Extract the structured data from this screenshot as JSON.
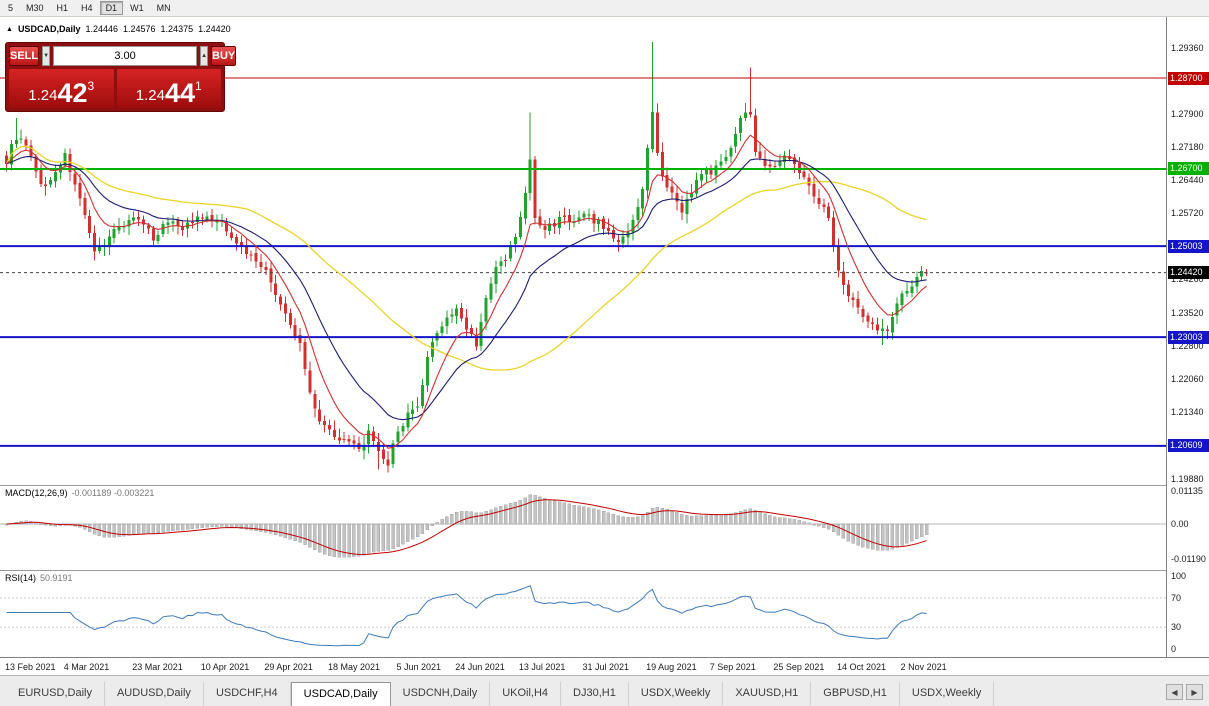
{
  "toolbar": {
    "timeframes": [
      "5",
      "M30",
      "H1",
      "H4",
      "D1",
      "W1",
      "MN"
    ],
    "active": "D1"
  },
  "chart_header": {
    "direction_icon": "▲",
    "symbol": "USDCAD,Daily",
    "open": "1.24446",
    "high": "1.24576",
    "low": "1.24375",
    "close": "1.24420"
  },
  "trade_panel": {
    "sell_label": "SELL",
    "buy_label": "BUY",
    "volume": "3.00",
    "spinner_up": "▲",
    "spinner_down": "▼",
    "sell_price": {
      "big": "1.24",
      "digits": "42",
      "sup": "3"
    },
    "buy_price": {
      "big": "1.24",
      "digits": "44",
      "sup": "1"
    }
  },
  "colors": {
    "up_candle": "#1fa32e",
    "down_candle": "#d22f2f",
    "ma_fast": "#d03030",
    "ma_mid": "#1b1b70",
    "ma_slow": "#e9d428",
    "macd_hist": "#c2c2c2",
    "macd_hist_border": "#9e9e9e",
    "macd_signal": "#c00000",
    "rsi_line": "#3e7ab8",
    "level_red": "#c00000",
    "level_green": "#00b200",
    "level_blue": "#1414c8",
    "current_badge": "#000000"
  },
  "price_scale": {
    "labels": [
      {
        "text": "1.29360",
        "price": 1.2936
      },
      {
        "text": "1.27900",
        "price": 1.279
      },
      {
        "text": "1.27180",
        "price": 1.2718
      },
      {
        "text": "1.26440",
        "price": 1.2644
      },
      {
        "text": "1.25720",
        "price": 1.2572
      },
      {
        "text": "1.24260",
        "price": 1.2426
      },
      {
        "text": "1.23520",
        "price": 1.2352
      },
      {
        "text": "1.22800",
        "price": 1.228
      },
      {
        "text": "1.22060",
        "price": 1.2206
      },
      {
        "text": "1.21340",
        "price": 1.2134
      },
      {
        "text": "1.19880",
        "price": 1.1988
      }
    ],
    "badges": [
      {
        "text": "1.28700",
        "price": 1.287,
        "color": "#c00000",
        "kind": "resistance-red"
      },
      {
        "text": "1.26700",
        "price": 1.267,
        "color": "#00b200",
        "kind": "level-green"
      },
      {
        "text": "1.25003",
        "price": 1.25003,
        "color": "#1414c8",
        "kind": "level-blue"
      },
      {
        "text": "1.24420",
        "price": 1.2442,
        "color": "#000000",
        "kind": "current-price"
      },
      {
        "text": "1.23003",
        "price": 1.23003,
        "color": "#1414c8",
        "kind": "level-blue"
      },
      {
        "text": "1.20609",
        "price": 1.20609,
        "color": "#1414c8",
        "kind": "level-blue"
      }
    ]
  },
  "indicators": {
    "macd": {
      "label": "MACD(12,26,9)",
      "values": "-0.001189 -0.003221",
      "fast": 12,
      "slow": 26,
      "signal": 9,
      "scale_labels": [
        {
          "text": "0.01135",
          "v": 0.01135
        },
        {
          "text": "0.00",
          "v": 0
        },
        {
          "text": "-0.01190",
          "v": -0.0119
        }
      ]
    },
    "rsi": {
      "label": "RSI(14)",
      "value": "50.9191",
      "period": 14,
      "scale_labels": [
        {
          "text": "100",
          "v": 100
        },
        {
          "text": "70",
          "v": 70
        },
        {
          "text": "30",
          "v": 30
        },
        {
          "text": "0",
          "v": 0
        }
      ],
      "level_lines": [
        70,
        30
      ]
    }
  },
  "chart_data": {
    "type": "candlestick",
    "symbol": "USDCAD",
    "timeframe": "Daily",
    "ohlc_last": {
      "open": 1.24446,
      "high": 1.24576,
      "low": 1.24375,
      "close": 1.2442
    },
    "price_range": [
      1.1975,
      1.3002
    ],
    "candle_count": 189,
    "current_price": 1.2442,
    "levels": [
      {
        "price": 1.287,
        "color": "#c00000",
        "width": 1
      },
      {
        "price": 1.267,
        "color": "#00b200",
        "width": 2
      },
      {
        "price": 1.25003,
        "color": "#1414c8",
        "width": 2
      },
      {
        "price": 1.23003,
        "color": "#1414c8",
        "width": 2
      },
      {
        "price": 1.20609,
        "color": "#1414c8",
        "width": 2
      }
    ],
    "moving_averages": [
      {
        "type": "ema",
        "period": 8,
        "color_key": "ma_fast"
      },
      {
        "type": "ema",
        "period": 20,
        "color_key": "ma_mid"
      },
      {
        "type": "sma",
        "period": 50,
        "color_key": "ma_slow"
      }
    ],
    "close_anchors": [
      [
        0,
        1.269
      ],
      [
        2,
        1.2742
      ],
      [
        4,
        1.2718
      ],
      [
        6,
        1.2662
      ],
      [
        8,
        1.2628
      ],
      [
        10,
        1.2668
      ],
      [
        12,
        1.2698
      ],
      [
        14,
        1.264
      ],
      [
        16,
        1.256
      ],
      [
        18,
        1.2482
      ],
      [
        20,
        1.2512
      ],
      [
        22,
        1.2536
      ],
      [
        24,
        1.255
      ],
      [
        26,
        1.2564
      ],
      [
        28,
        1.2542
      ],
      [
        30,
        1.252
      ],
      [
        32,
        1.2544
      ],
      [
        34,
        1.256
      ],
      [
        36,
        1.254
      ],
      [
        38,
        1.2554
      ],
      [
        40,
        1.2562
      ],
      [
        42,
        1.2556
      ],
      [
        44,
        1.2548
      ],
      [
        46,
        1.2526
      ],
      [
        48,
        1.2496
      ],
      [
        50,
        1.248
      ],
      [
        52,
        1.2462
      ],
      [
        54,
        1.242
      ],
      [
        56,
        1.2372
      ],
      [
        58,
        1.2322
      ],
      [
        60,
        1.2284
      ],
      [
        62,
        1.218
      ],
      [
        64,
        1.2118
      ],
      [
        66,
        1.2096
      ],
      [
        68,
        1.208
      ],
      [
        70,
        1.2066
      ],
      [
        72,
        1.2052
      ],
      [
        74,
        1.2088
      ],
      [
        76,
        1.2042
      ],
      [
        78,
        1.2022
      ],
      [
        80,
        1.2096
      ],
      [
        82,
        1.2128
      ],
      [
        84,
        1.2142
      ],
      [
        86,
        1.225
      ],
      [
        88,
        1.2316
      ],
      [
        90,
        1.2342
      ],
      [
        92,
        1.236
      ],
      [
        94,
        1.2322
      ],
      [
        96,
        1.2286
      ],
      [
        98,
        1.238
      ],
      [
        100,
        1.2452
      ],
      [
        102,
        1.2472
      ],
      [
        104,
        1.2522
      ],
      [
        106,
        1.2612
      ],
      [
        107,
        1.2688
      ],
      [
        108,
        1.2562
      ],
      [
        110,
        1.2536
      ],
      [
        112,
        1.2552
      ],
      [
        114,
        1.2568
      ],
      [
        116,
        1.2548
      ],
      [
        118,
        1.2568
      ],
      [
        120,
        1.2558
      ],
      [
        122,
        1.2542
      ],
      [
        124,
        1.2518
      ],
      [
        126,
        1.2514
      ],
      [
        128,
        1.2562
      ],
      [
        130,
        1.2624
      ],
      [
        132,
        1.2792
      ],
      [
        133,
        1.2702
      ],
      [
        134,
        1.2646
      ],
      [
        136,
        1.2612
      ],
      [
        138,
        1.2582
      ],
      [
        140,
        1.2622
      ],
      [
        142,
        1.2656
      ],
      [
        144,
        1.2666
      ],
      [
        146,
        1.268
      ],
      [
        148,
        1.2722
      ],
      [
        150,
        1.2782
      ],
      [
        152,
        1.2796
      ],
      [
        153,
        1.2712
      ],
      [
        154,
        1.2702
      ],
      [
        156,
        1.2668
      ],
      [
        158,
        1.269
      ],
      [
        160,
        1.27
      ],
      [
        162,
        1.2662
      ],
      [
        164,
        1.2634
      ],
      [
        166,
        1.2602
      ],
      [
        168,
        1.2558
      ],
      [
        170,
        1.2452
      ],
      [
        172,
        1.2392
      ],
      [
        174,
        1.2362
      ],
      [
        176,
        1.2332
      ],
      [
        178,
        1.2316
      ],
      [
        180,
        1.2322
      ],
      [
        182,
        1.2382
      ],
      [
        184,
        1.2402
      ],
      [
        186,
        1.2436
      ],
      [
        188,
        1.2442
      ]
    ],
    "spikes": [
      {
        "i": 2,
        "high": 1.2782
      },
      {
        "i": 76,
        "low": 1.2009
      },
      {
        "i": 107,
        "high": 1.2794
      },
      {
        "i": 132,
        "high": 1.2949
      },
      {
        "i": 152,
        "high": 1.2893
      },
      {
        "i": 179,
        "low": 1.2283
      }
    ],
    "x_labels": [
      {
        "text": "13 Feb 2021",
        "i": 0
      },
      {
        "text": "4 Mar 2021",
        "i": 12
      },
      {
        "text": "23 Mar 2021",
        "i": 26
      },
      {
        "text": "10 Apr 2021",
        "i": 40
      },
      {
        "text": "29 Apr 2021",
        "i": 53
      },
      {
        "text": "18 May 2021",
        "i": 66
      },
      {
        "text": "5 Jun 2021",
        "i": 80
      },
      {
        "text": "24 Jun 2021",
        "i": 92
      },
      {
        "text": "13 Jul 2021",
        "i": 105
      },
      {
        "text": "31 Jul 2021",
        "i": 118
      },
      {
        "text": "19 Aug 2021",
        "i": 131
      },
      {
        "text": "7 Sep 2021",
        "i": 144
      },
      {
        "text": "25 Sep 2021",
        "i": 157
      },
      {
        "text": "14 Oct 2021",
        "i": 170
      },
      {
        "text": "2 Nov 2021",
        "i": 183
      }
    ]
  },
  "bottom_tabs": {
    "tabs": [
      {
        "label": "EURUSD,Daily"
      },
      {
        "label": "AUDUSD,Daily"
      },
      {
        "label": "USDCHF,H4"
      },
      {
        "label": "USDCAD,Daily",
        "active": true
      },
      {
        "label": "USDCNH,Daily"
      },
      {
        "label": "UKOil,H4"
      },
      {
        "label": "DJ30,H1"
      },
      {
        "label": "USDX,Weekly"
      },
      {
        "label": "XAUUSD,H1"
      },
      {
        "label": "GBPUSD,H1"
      },
      {
        "label": "USDX,Weekly"
      }
    ],
    "nav_left": "◀",
    "nav_right": "▶"
  }
}
